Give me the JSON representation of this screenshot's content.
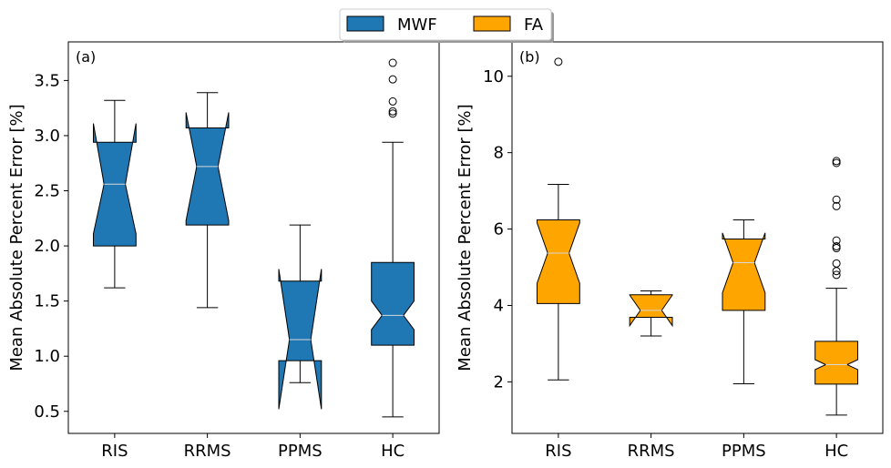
{
  "legend": {
    "items": [
      {
        "label": "MWF",
        "color": "#1f77b4"
      },
      {
        "label": "FA",
        "color": "#ffa500"
      }
    ],
    "placement": "top-center"
  },
  "chart_data": [
    {
      "type": "box",
      "panel_label": "(a)",
      "ylabel": "Mean Absolute Percent Error [%]",
      "categories": [
        "RIS",
        "RRMS",
        "PPMS",
        "HC"
      ],
      "ylim": [
        0.3,
        3.85
      ],
      "yticks": [
        "0.5",
        "1.0",
        "1.5",
        "2.0",
        "2.5",
        "3.0",
        "3.5"
      ],
      "series_name": "MWF",
      "color": "#1f77b4",
      "boxes": [
        {
          "category": "RIS",
          "whisker_low": 1.62,
          "q1": 2.0,
          "median": 2.56,
          "q3": 2.94,
          "whisker_high": 3.32,
          "notch_low": 2.11,
          "notch_high": 3.11,
          "fliers": []
        },
        {
          "category": "RRMS",
          "whisker_low": 1.44,
          "q1": 2.19,
          "median": 2.72,
          "q3": 3.07,
          "whisker_high": 3.39,
          "notch_low": 2.23,
          "notch_high": 3.21,
          "fliers": []
        },
        {
          "category": "PPMS",
          "whisker_low": 0.76,
          "q1": 0.96,
          "median": 1.15,
          "q3": 1.68,
          "whisker_high": 2.19,
          "notch_low": 0.52,
          "notch_high": 1.79,
          "fliers": []
        },
        {
          "category": "HC",
          "whisker_low": 0.45,
          "q1": 1.1,
          "median": 1.37,
          "q3": 1.85,
          "whisker_high": 2.94,
          "notch_low": 1.24,
          "notch_high": 1.5,
          "fliers": [
            3.22,
            3.2,
            3.31,
            3.51,
            3.66
          ]
        }
      ]
    },
    {
      "type": "box",
      "panel_label": "(b)",
      "ylabel": "Mean Absolute Percent Error [%]",
      "categories": [
        "RIS",
        "RRMS",
        "PPMS",
        "HC"
      ],
      "ylim": [
        0.65,
        10.9
      ],
      "yticks": [
        "2",
        "4",
        "6",
        "8",
        "10"
      ],
      "series_name": "FA",
      "color": "#ffa500",
      "boxes": [
        {
          "category": "RIS",
          "whisker_low": 2.05,
          "q1": 4.05,
          "median": 5.37,
          "q3": 6.24,
          "whisker_high": 7.17,
          "notch_low": 4.58,
          "notch_high": 6.16,
          "fliers": [
            10.38
          ]
        },
        {
          "category": "RRMS",
          "whisker_low": 3.2,
          "q1": 3.69,
          "median": 3.87,
          "q3": 4.28,
          "whisker_high": 4.38,
          "notch_low": 3.47,
          "notch_high": 4.27,
          "fliers": []
        },
        {
          "category": "PPMS",
          "whisker_low": 1.95,
          "q1": 3.87,
          "median": 5.12,
          "q3": 5.74,
          "whisker_high": 6.24,
          "notch_low": 4.33,
          "notch_high": 5.9,
          "fliers": []
        },
        {
          "category": "HC",
          "whisker_low": 1.13,
          "q1": 1.94,
          "median": 2.45,
          "q3": 3.06,
          "whisker_high": 4.45,
          "notch_low": 2.32,
          "notch_high": 2.58,
          "fliers": [
            4.8,
            4.9,
            5.1,
            5.5,
            5.55,
            5.7,
            6.6,
            6.77,
            7.73,
            7.78
          ]
        }
      ]
    }
  ]
}
